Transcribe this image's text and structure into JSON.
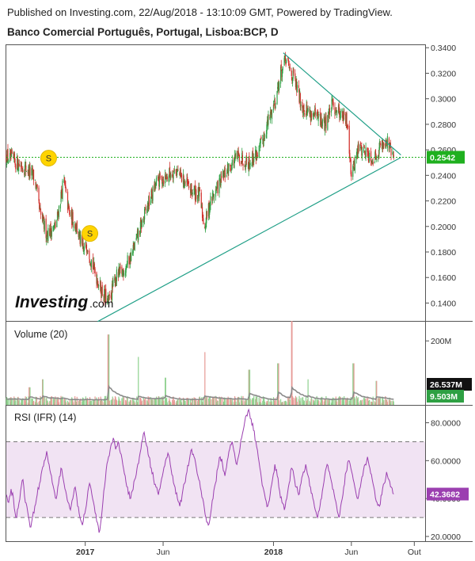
{
  "header": {
    "published": "Published on Investing.com, 22/Aug/2018 - 13:10:09 GMT, Powered by TradingView.",
    "instrument": "Banco Comercial Português, Portugal, Lisboa:BCP, D"
  },
  "logo": {
    "brand": "Investing",
    "suffix": ".com"
  },
  "colors": {
    "up": "#2ea043",
    "down": "#d2302c",
    "trendline": "#1f9f87",
    "support": "#1fb01f",
    "rsi_line": "#9b3fb0",
    "rsi_band": "#f1e3f3",
    "volume_ma": "#8a8a8a",
    "split_badge": "#ffd400"
  },
  "chart_data": [
    {
      "type": "candlestick",
      "title": "Banco Comercial Português, Portugal, Lisboa:BCP, D",
      "x_ticks": [
        "2017",
        "Jun",
        "2018",
        "Jun",
        "Out"
      ],
      "y_ticks": [
        "0.3400",
        "0.3200",
        "0.3000",
        "0.2800",
        "0.2600",
        "0.2400",
        "0.2200",
        "0.2000",
        "0.1800",
        "0.1600",
        "0.1400"
      ],
      "ylim": [
        0.126,
        0.342
      ],
      "last_price_label": "0.2542",
      "last_price": 0.2542,
      "x_range": [
        "2016-08-01",
        "2018-10-22"
      ],
      "price_path": [
        [
          "2016-08-01",
          0.255
        ],
        [
          "2016-08-20",
          0.25
        ],
        [
          "2016-09-10",
          0.245
        ],
        [
          "2016-09-25",
          0.238
        ],
        [
          "2016-10-05",
          0.21
        ],
        [
          "2016-10-18",
          0.195
        ],
        [
          "2016-11-05",
          0.2
        ],
        [
          "2016-11-20",
          0.236
        ],
        [
          "2016-12-01",
          0.21
        ],
        [
          "2016-12-15",
          0.2
        ],
        [
          "2016-12-28",
          0.18
        ],
        [
          "2017-01-05",
          0.186
        ],
        [
          "2017-01-15",
          0.17
        ],
        [
          "2017-02-01",
          0.15
        ],
        [
          "2017-02-15",
          0.14
        ],
        [
          "2017-03-01",
          0.16
        ],
        [
          "2017-03-15",
          0.165
        ],
        [
          "2017-04-01",
          0.178
        ],
        [
          "2017-04-15",
          0.195
        ],
        [
          "2017-05-01",
          0.215
        ],
        [
          "2017-05-20",
          0.235
        ],
        [
          "2017-06-10",
          0.24
        ],
        [
          "2017-06-25",
          0.245
        ],
        [
          "2017-07-10",
          0.236
        ],
        [
          "2017-07-25",
          0.228
        ],
        [
          "2017-08-10",
          0.225
        ],
        [
          "2017-08-20",
          0.2
        ],
        [
          "2017-09-01",
          0.22
        ],
        [
          "2017-09-20",
          0.235
        ],
        [
          "2017-10-05",
          0.245
        ],
        [
          "2017-10-25",
          0.255
        ],
        [
          "2017-11-15",
          0.25
        ],
        [
          "2017-12-05",
          0.26
        ],
        [
          "2017-12-20",
          0.28
        ],
        [
          "2018-01-05",
          0.3
        ],
        [
          "2018-01-15",
          0.32
        ],
        [
          "2018-01-25",
          0.33
        ],
        [
          "2018-02-10",
          0.315
        ],
        [
          "2018-02-25",
          0.295
        ],
        [
          "2018-03-10",
          0.29
        ],
        [
          "2018-03-25",
          0.285
        ],
        [
          "2018-04-10",
          0.28
        ],
        [
          "2018-04-25",
          0.295
        ],
        [
          "2018-05-10",
          0.29
        ],
        [
          "2018-05-25",
          0.28
        ],
        [
          "2018-06-01",
          0.24
        ],
        [
          "2018-06-15",
          0.262
        ],
        [
          "2018-07-01",
          0.258
        ],
        [
          "2018-07-15",
          0.252
        ],
        [
          "2018-07-25",
          0.262
        ],
        [
          "2018-08-08",
          0.268
        ],
        [
          "2018-08-15",
          0.26
        ],
        [
          "2018-08-22",
          0.2542
        ]
      ],
      "trendlines": [
        {
          "name": "support",
          "from": [
            "2017-01-25",
            0.1255
          ],
          "to": [
            "2018-09-05",
            0.254
          ]
        },
        {
          "name": "resistance",
          "from": [
            "2018-01-20",
            0.336
          ],
          "to": [
            "2018-09-05",
            0.256
          ]
        }
      ],
      "horizontal_line": 0.2542,
      "split_badges": [
        {
          "label": "S",
          "date": "2016-10-22",
          "price": 0.2535
        },
        {
          "label": "S",
          "date": "2017-01-10",
          "price": 0.1945
        }
      ]
    },
    {
      "type": "bar",
      "title": "Volume (20)",
      "y_ticks": [
        "200M"
      ],
      "ylim": [
        0,
        260
      ],
      "unit": "M",
      "labels": {
        "volume": "26.537M",
        "volume_ma": "9.503M"
      },
      "spikes": [
        {
          "date": "2016-09-15",
          "value": 55
        },
        {
          "date": "2016-10-10",
          "value": 80
        },
        {
          "date": "2017-02-15",
          "value": 220
        },
        {
          "date": "2017-04-15",
          "value": 150
        },
        {
          "date": "2017-06-05",
          "value": 85
        },
        {
          "date": "2017-08-20",
          "value": 165
        },
        {
          "date": "2017-11-15",
          "value": 110
        },
        {
          "date": "2018-01-10",
          "value": 130
        },
        {
          "date": "2018-02-05",
          "value": 262
        },
        {
          "date": "2018-03-10",
          "value": 80
        },
        {
          "date": "2018-06-05",
          "value": 130
        },
        {
          "date": "2018-07-20",
          "value": 75
        }
      ]
    },
    {
      "type": "line",
      "title": "RSI (IFR) (14)",
      "y_ticks": [
        "80.0000",
        "60.0000",
        "40.0000",
        "20.0000"
      ],
      "ylim": [
        17.5,
        89
      ],
      "band": [
        30,
        70
      ],
      "last_value_label": "42.3682",
      "last_value": 42.3682,
      "series": [
        {
          "values": [
            42,
            38,
            45,
            40,
            30,
            35,
            44,
            50,
            38,
            33,
            25,
            30,
            36,
            42,
            48,
            55,
            60,
            65,
            58,
            52,
            45,
            40,
            48,
            56,
            50,
            44,
            38,
            34,
            40,
            46,
            36,
            30,
            26,
            32,
            40,
            48,
            42,
            36,
            28,
            22,
            30,
            44,
            55,
            62,
            68,
            72,
            66,
            70,
            64,
            58,
            52,
            46,
            40,
            44,
            50,
            56,
            62,
            70,
            75,
            68,
            62,
            56,
            50,
            46,
            42,
            48,
            54,
            60,
            64,
            58,
            52,
            46,
            40,
            36,
            42,
            48,
            54,
            60,
            66,
            62,
            56,
            50,
            44,
            38,
            30,
            26,
            32,
            40,
            48,
            56,
            62,
            58,
            52,
            60,
            66,
            70,
            64,
            58,
            64,
            72,
            78,
            84,
            87,
            82,
            76,
            70,
            62,
            54,
            46,
            40,
            36,
            42,
            50,
            58,
            52,
            44,
            38,
            34,
            40,
            48,
            56,
            52,
            46,
            42,
            48,
            54,
            58,
            52,
            46,
            40,
            34,
            30,
            36,
            44,
            52,
            58,
            54,
            48,
            42,
            36,
            30,
            38,
            46,
            54,
            60,
            56,
            50,
            44,
            40,
            46,
            52,
            58,
            62,
            56,
            50,
            44,
            38,
            36,
            42,
            48,
            54,
            50,
            46,
            42.3682
          ]
        }
      ]
    }
  ],
  "x_axis_labels": [
    "2017",
    "Jun",
    "2018",
    "Jun",
    "Out"
  ]
}
